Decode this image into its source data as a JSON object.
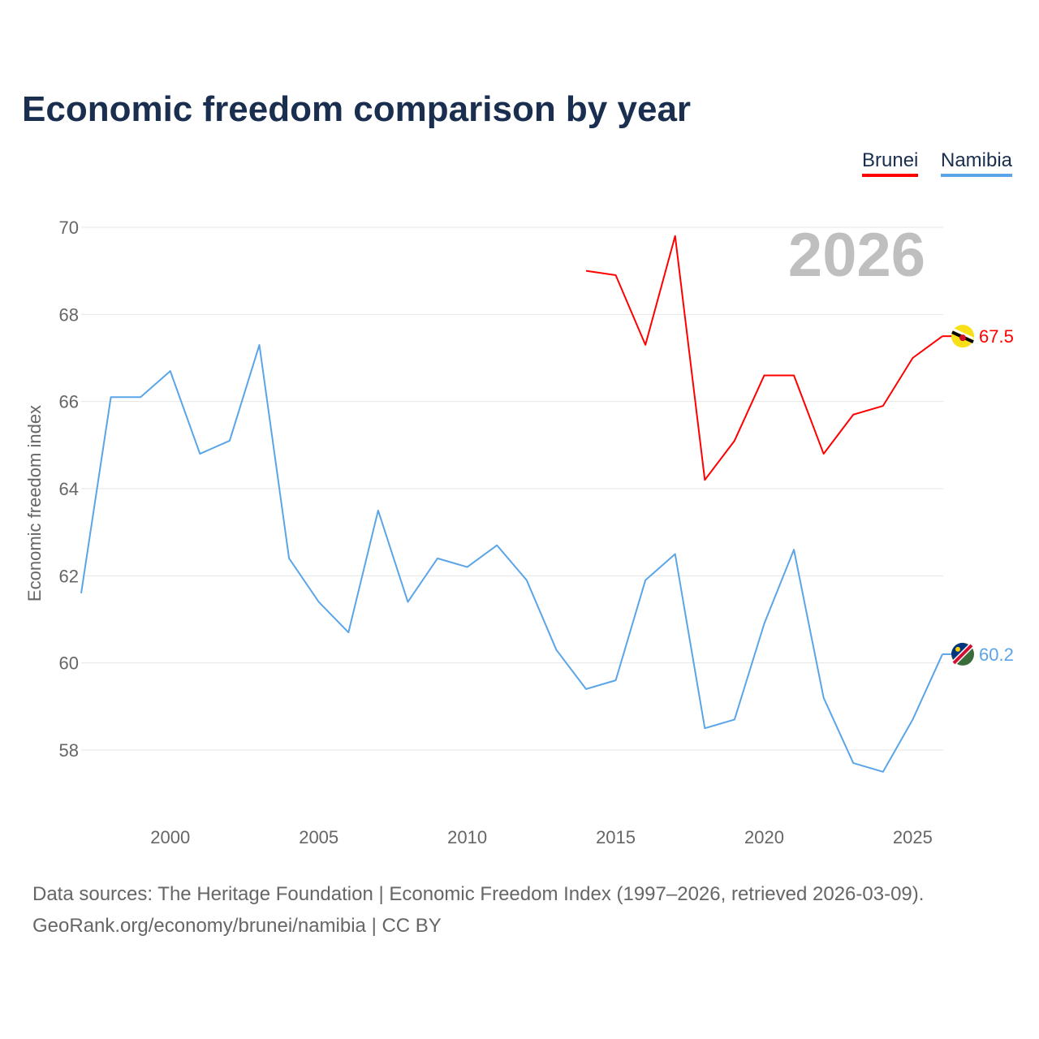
{
  "chart_data": {
    "type": "line",
    "title": "Economic freedom comparison by year",
    "ylabel": "Economic freedom index",
    "xlabel": "",
    "ylim": [
      56.5,
      70.5
    ],
    "xlim": [
      1997,
      2026
    ],
    "yticks": [
      58,
      60,
      62,
      64,
      66,
      68,
      70
    ],
    "xticks": [
      2000,
      2005,
      2010,
      2015,
      2020,
      2025
    ],
    "grid": true,
    "legend_position": "top-right",
    "year_watermark": "2026",
    "series": [
      {
        "name": "Brunei",
        "color": "#ff0000",
        "end_label": "67.5",
        "x": [
          2014,
          2015,
          2016,
          2017,
          2018,
          2019,
          2020,
          2021,
          2022,
          2023,
          2024,
          2025,
          2026
        ],
        "values": [
          69.0,
          68.9,
          67.3,
          69.8,
          64.2,
          65.1,
          66.6,
          66.6,
          64.8,
          65.7,
          65.9,
          67.0,
          67.5
        ]
      },
      {
        "name": "Namibia",
        "color": "#5aa5e8",
        "end_label": "60.2",
        "x": [
          1997,
          1998,
          1999,
          2000,
          2001,
          2002,
          2003,
          2004,
          2005,
          2006,
          2007,
          2008,
          2009,
          2010,
          2011,
          2012,
          2013,
          2014,
          2015,
          2016,
          2017,
          2018,
          2019,
          2020,
          2021,
          2022,
          2023,
          2024,
          2025,
          2026
        ],
        "values": [
          61.6,
          66.1,
          66.1,
          66.7,
          64.8,
          65.1,
          67.3,
          62.4,
          61.4,
          60.7,
          63.5,
          61.4,
          62.4,
          62.2,
          62.7,
          61.9,
          60.3,
          59.4,
          59.6,
          61.9,
          62.5,
          58.5,
          58.7,
          60.9,
          62.6,
          59.2,
          57.7,
          57.5,
          58.7,
          60.2
        ]
      }
    ]
  },
  "footer": {
    "line1": "Data sources: The Heritage Foundation | Economic Freedom Index (1997–2026, retrieved 2026-03-09).",
    "line2": "GeoRank.org/economy/brunei/namibia | CC BY"
  }
}
